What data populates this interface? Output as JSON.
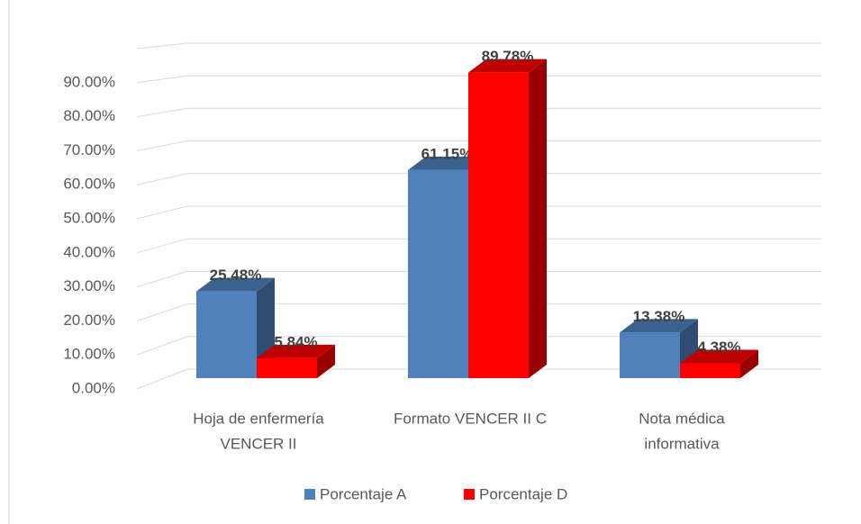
{
  "chart_data": {
    "type": "bar3d",
    "categories": [
      [
        "Hoja de enfermería",
        "VENCER II"
      ],
      [
        "Formato VENCER II C"
      ],
      [
        "Nota médica",
        "informativa"
      ]
    ],
    "series": [
      {
        "name": "Porcentaje A",
        "color": "#4f81bd",
        "values": [
          25.48,
          61.15,
          13.38
        ],
        "value_labels": [
          "25.48%",
          "61.15%",
          "13.38%"
        ]
      },
      {
        "name": "Porcentaje D",
        "color": "#ff0000",
        "values": [
          5.84,
          89.78,
          4.38
        ],
        "value_labels": [
          "5.84%",
          "89.78%",
          "4.38%"
        ]
      }
    ],
    "ylim": [
      0,
      100
    ],
    "yticks": [
      {
        "value": 0,
        "label": "0.00%"
      },
      {
        "value": 10,
        "label": "10.00%"
      },
      {
        "value": 20,
        "label": "20.00%"
      },
      {
        "value": 30,
        "label": "30.00%"
      },
      {
        "value": 40,
        "label": "40.00%"
      },
      {
        "value": 50,
        "label": "50.00%"
      },
      {
        "value": 60,
        "label": "60.00%"
      },
      {
        "value": 70,
        "label": "70.00%"
      },
      {
        "value": 80,
        "label": "80.00%"
      },
      {
        "value": 90,
        "label": "90.00%"
      }
    ],
    "grid": true,
    "legend": "bottom"
  }
}
